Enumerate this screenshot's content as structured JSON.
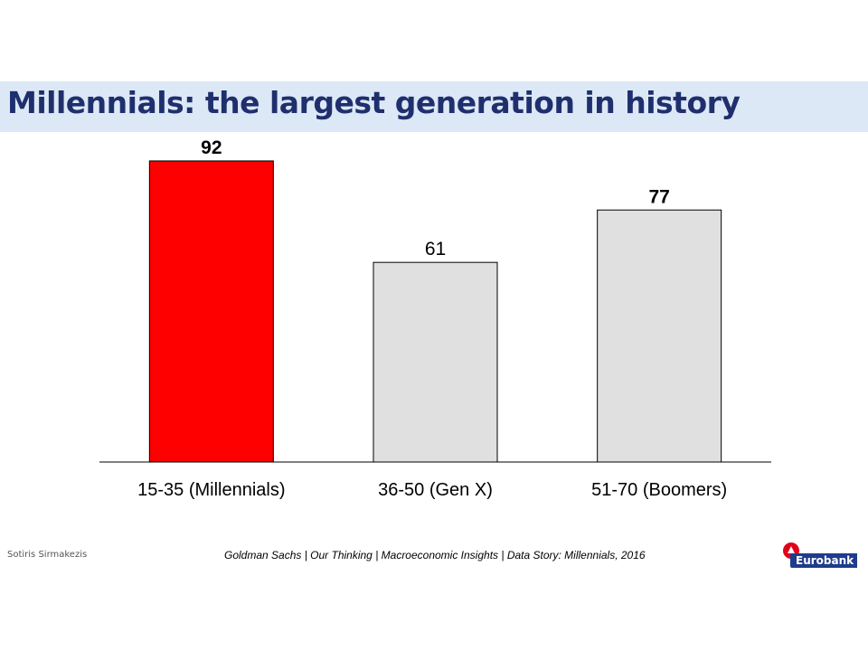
{
  "slide": {
    "title": "Millennials: the largest generation in history",
    "author": "Sotiris Sirmakezis",
    "source": "Goldman Sachs | Our Thinking | Macroeconomic Insights | Data Story: Millennials, 2016",
    "logo_text": "Eurobank"
  },
  "colors": {
    "title_band": "#dce8f5",
    "title_text": "#1f2f6e",
    "highlight_bar": "#ff0000",
    "other_bar": "#e0e0e0",
    "logo_red": "#e2001a",
    "logo_blue": "#1f3b8c"
  },
  "chart_data": {
    "type": "bar",
    "categories": [
      "15-35 (Millennials)",
      "36-50 (Gen X)",
      "51-70 (Boomers)"
    ],
    "values": [
      92,
      61,
      77
    ],
    "data_labels": [
      "92",
      "61",
      "77"
    ],
    "label_bold": [
      true,
      false,
      true
    ],
    "bar_colors": [
      "#ff0000",
      "#e0e0e0",
      "#e0e0e0"
    ],
    "ylim": [
      0,
      100
    ],
    "grid": false,
    "legend": "none"
  }
}
